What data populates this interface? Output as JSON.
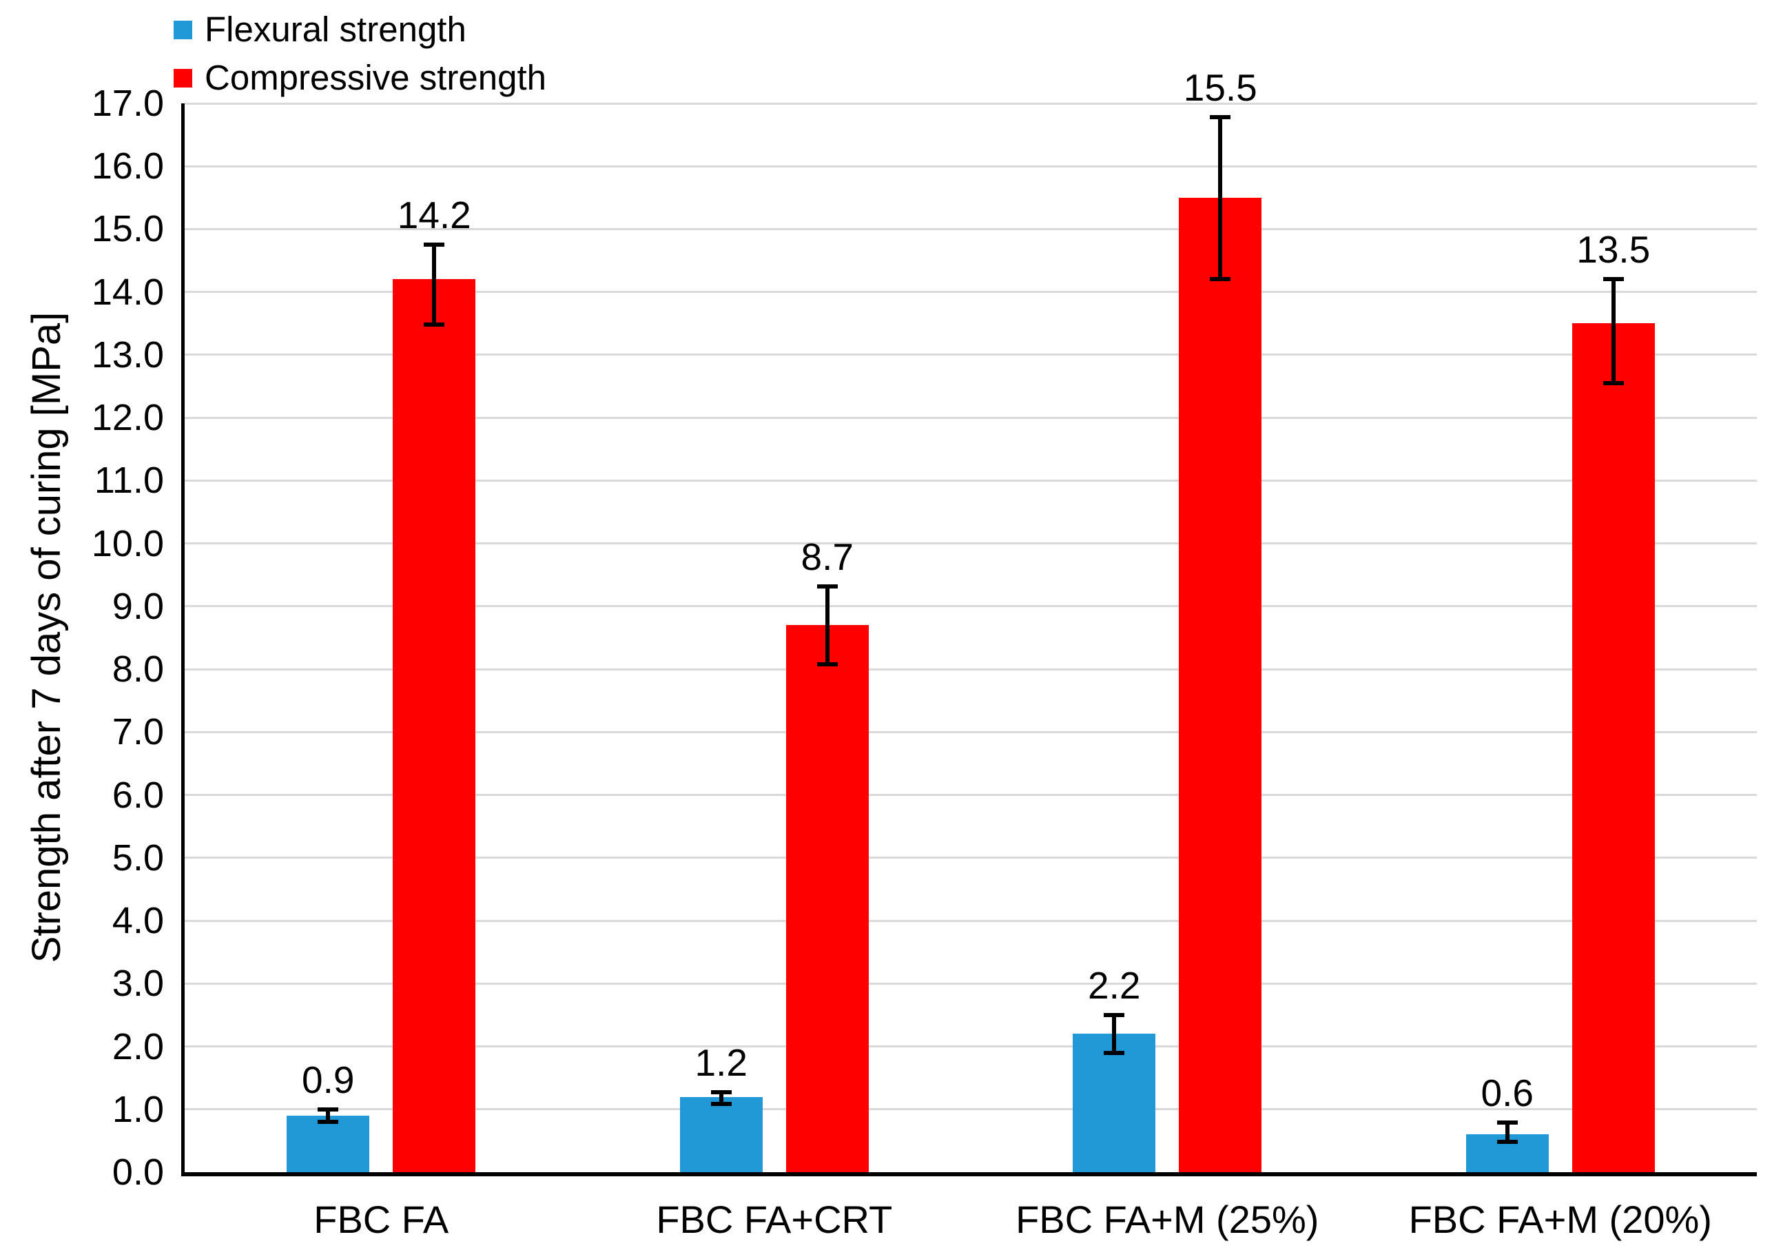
{
  "chart_data": {
    "type": "bar",
    "title": "",
    "xlabel": "",
    "ylabel": "Strength after 7 days of curing [MPa]",
    "ylim": [
      0,
      17
    ],
    "ytick_step": 1.0,
    "ytick_decimals": 1,
    "grid": true,
    "legend_position": "top-left",
    "categories": [
      "FBC FA",
      "FBC FA+CRT",
      "FBC FA+M (25%)",
      "FBC FA+M (20%)"
    ],
    "series": [
      {
        "name": "Flexural strength",
        "color": "#2199D6",
        "values": [
          0.9,
          1.2,
          2.2,
          0.6
        ],
        "labels": [
          "0.9",
          "1.2",
          "2.2",
          "0.6"
        ],
        "error_low": [
          0.8,
          1.08,
          1.9,
          0.48
        ],
        "error_high": [
          1.0,
          1.27,
          2.5,
          0.79
        ]
      },
      {
        "name": "Compressive strength",
        "color": "#FF0000",
        "values": [
          14.2,
          8.7,
          15.5,
          13.5
        ],
        "labels": [
          "14.2",
          "8.7",
          "15.5",
          "13.5"
        ],
        "error_low": [
          13.48,
          8.08,
          14.2,
          12.55
        ],
        "error_high": [
          14.75,
          9.32,
          16.78,
          14.2
        ]
      }
    ],
    "colors": {
      "axis": "#000000",
      "gridline": "#D9D9D9",
      "error_bar": "#000000",
      "text": "#000000",
      "background": "#FFFFFF"
    }
  }
}
